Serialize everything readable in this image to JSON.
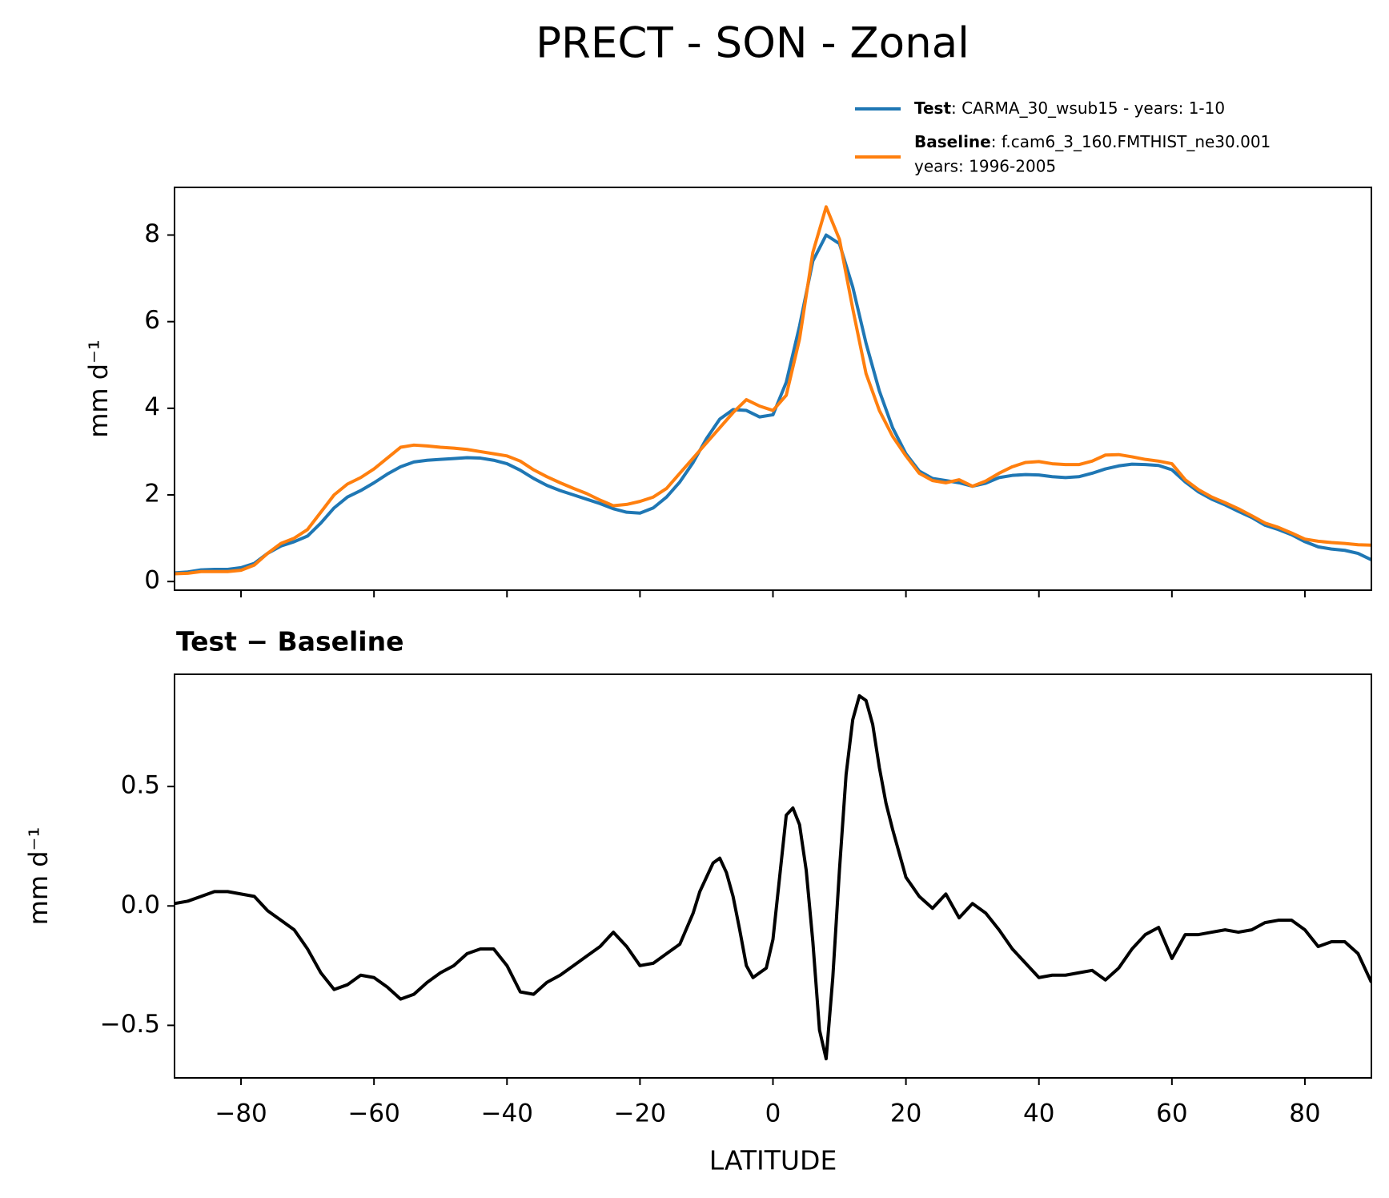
{
  "title": "PRECT - SON - Zonal",
  "chart_data": [
    {
      "type": "line",
      "ylabel": "mm d⁻¹",
      "xlim": [
        -90,
        90
      ],
      "xticks": [
        -80,
        -60,
        -40,
        -20,
        0,
        20,
        40,
        60,
        80
      ],
      "ylim": [
        -0.2,
        9.1
      ],
      "yticks": [
        0,
        2,
        4,
        6,
        8
      ],
      "legend": "upper right",
      "x": [
        -90,
        -88,
        -86,
        -84,
        -82,
        -80,
        -78,
        -76,
        -74,
        -72,
        -70,
        -68,
        -66,
        -64,
        -62,
        -60,
        -58,
        -56,
        -54,
        -52,
        -50,
        -48,
        -46,
        -44,
        -42,
        -40,
        -38,
        -36,
        -34,
        -32,
        -30,
        -28,
        -26,
        -24,
        -22,
        -20,
        -18,
        -16,
        -14,
        -12,
        -10,
        -8,
        -6,
        -4,
        -2,
        0,
        2,
        4,
        6,
        8,
        10,
        12,
        14,
        16,
        18,
        20,
        22,
        24,
        26,
        28,
        30,
        32,
        34,
        36,
        38,
        40,
        42,
        44,
        46,
        48,
        50,
        52,
        54,
        56,
        58,
        60,
        62,
        64,
        66,
        68,
        70,
        72,
        74,
        76,
        78,
        80,
        82,
        84,
        86,
        88,
        90
      ],
      "series": [
        {
          "name": "Test",
          "description": [
            ": CARMA_30_wsub15 - years: 1-10"
          ],
          "color": "#1f77b4",
          "values": [
            0.2,
            0.22,
            0.27,
            0.28,
            0.28,
            0.32,
            0.42,
            0.65,
            0.82,
            0.92,
            1.05,
            1.35,
            1.7,
            1.95,
            2.1,
            2.28,
            2.48,
            2.65,
            2.76,
            2.8,
            2.82,
            2.84,
            2.86,
            2.85,
            2.8,
            2.72,
            2.57,
            2.38,
            2.22,
            2.1,
            2.0,
            1.9,
            1.8,
            1.68,
            1.6,
            1.58,
            1.7,
            1.95,
            2.3,
            2.75,
            3.3,
            3.75,
            3.97,
            3.95,
            3.8,
            3.85,
            4.6,
            5.9,
            7.4,
            8.0,
            7.8,
            6.8,
            5.5,
            4.4,
            3.55,
            2.95,
            2.55,
            2.38,
            2.33,
            2.28,
            2.2,
            2.27,
            2.4,
            2.45,
            2.47,
            2.46,
            2.42,
            2.4,
            2.42,
            2.5,
            2.6,
            2.67,
            2.71,
            2.7,
            2.68,
            2.58,
            2.3,
            2.07,
            1.9,
            1.77,
            1.62,
            1.48,
            1.3,
            1.2,
            1.08,
            0.92,
            0.8,
            0.75,
            0.72,
            0.65,
            0.5
          ]
        },
        {
          "name": "Baseline",
          "description": [
            ": f.cam6_3_160.FMTHIST_ne30.001",
            "years: 1996-2005"
          ],
          "color": "#ff7f0e",
          "values": [
            0.18,
            0.19,
            0.23,
            0.23,
            0.23,
            0.26,
            0.38,
            0.65,
            0.88,
            1.0,
            1.2,
            1.6,
            2.0,
            2.25,
            2.4,
            2.6,
            2.85,
            3.1,
            3.15,
            3.13,
            3.1,
            3.08,
            3.05,
            3.0,
            2.95,
            2.9,
            2.78,
            2.58,
            2.42,
            2.28,
            2.15,
            2.03,
            1.88,
            1.75,
            1.78,
            1.85,
            1.95,
            2.15,
            2.5,
            2.85,
            3.2,
            3.55,
            3.9,
            4.2,
            4.05,
            3.95,
            4.3,
            5.6,
            7.6,
            8.65,
            7.9,
            6.3,
            4.8,
            3.95,
            3.35,
            2.9,
            2.5,
            2.33,
            2.28,
            2.35,
            2.2,
            2.32,
            2.5,
            2.65,
            2.75,
            2.77,
            2.72,
            2.7,
            2.7,
            2.78,
            2.92,
            2.93,
            2.88,
            2.82,
            2.78,
            2.72,
            2.35,
            2.12,
            1.95,
            1.82,
            1.68,
            1.52,
            1.35,
            1.25,
            1.12,
            0.98,
            0.93,
            0.9,
            0.88,
            0.85,
            0.84
          ]
        }
      ]
    },
    {
      "type": "line",
      "title": "Test − Baseline",
      "ylabel": "mm d⁻¹",
      "xlabel": "LATITUDE",
      "xlim": [
        -90,
        90
      ],
      "xticks": [
        {
          "value": -80,
          "label": "−80"
        },
        {
          "value": -60,
          "label": "−60"
        },
        {
          "value": -40,
          "label": "−40"
        },
        {
          "value": -20,
          "label": "−20"
        },
        0,
        20,
        40,
        60,
        80
      ],
      "ylim": [
        -0.72,
        0.97
      ],
      "yticks": [
        {
          "value": -0.5,
          "label": "−0.5"
        },
        {
          "value": 0,
          "label": "0.0"
        },
        0.5
      ],
      "x": [
        -90,
        -88,
        -86,
        -84,
        -82,
        -80,
        -78,
        -76,
        -74,
        -72,
        -70,
        -68,
        -66,
        -64,
        -62,
        -60,
        -58,
        -56,
        -54,
        -52,
        -50,
        -48,
        -46,
        -44,
        -42,
        -40,
        -38,
        -36,
        -34,
        -32,
        -30,
        -28,
        -26,
        -24,
        -22,
        -20,
        -18,
        -16,
        -14,
        -12,
        -11,
        -10,
        -9,
        -8,
        -7,
        -6,
        -5,
        -4,
        -3,
        -2,
        -1,
        0,
        1,
        2,
        3,
        4,
        5,
        6,
        7,
        8,
        9,
        10,
        11,
        12,
        13,
        14,
        15,
        16,
        17,
        18,
        19,
        20,
        22,
        24,
        26,
        28,
        30,
        32,
        34,
        36,
        38,
        40,
        42,
        44,
        46,
        48,
        50,
        52,
        54,
        56,
        58,
        60,
        62,
        64,
        66,
        68,
        70,
        72,
        74,
        76,
        78,
        80,
        82,
        84,
        86,
        88,
        90
      ],
      "series": [
        {
          "color": "#000000",
          "values": [
            0.01,
            0.02,
            0.04,
            0.06,
            0.06,
            0.05,
            0.04,
            -0.02,
            -0.06,
            -0.1,
            -0.18,
            -0.28,
            -0.35,
            -0.33,
            -0.29,
            -0.3,
            -0.34,
            -0.39,
            -0.37,
            -0.32,
            -0.28,
            -0.25,
            -0.2,
            -0.18,
            -0.18,
            -0.25,
            -0.36,
            -0.37,
            -0.32,
            -0.29,
            -0.25,
            -0.21,
            -0.17,
            -0.11,
            -0.17,
            -0.25,
            -0.24,
            -0.2,
            -0.16,
            -0.03,
            0.06,
            0.12,
            0.18,
            0.2,
            0.14,
            0.04,
            -0.1,
            -0.25,
            -0.3,
            -0.28,
            -0.26,
            -0.14,
            0.12,
            0.38,
            0.41,
            0.34,
            0.15,
            -0.15,
            -0.52,
            -0.64,
            -0.3,
            0.15,
            0.55,
            0.78,
            0.88,
            0.86,
            0.76,
            0.58,
            0.43,
            0.32,
            0.22,
            0.12,
            0.04,
            -0.01,
            0.05,
            -0.05,
            0.01,
            -0.03,
            -0.1,
            -0.18,
            -0.24,
            -0.3,
            -0.29,
            -0.29,
            -0.28,
            -0.27,
            -0.31,
            -0.26,
            -0.18,
            -0.12,
            -0.09,
            -0.22,
            -0.12,
            -0.12,
            -0.11,
            -0.1,
            -0.11,
            -0.1,
            -0.07,
            -0.06,
            -0.06,
            -0.1,
            -0.17,
            -0.15,
            -0.15,
            -0.2,
            -0.32
          ]
        }
      ]
    }
  ]
}
